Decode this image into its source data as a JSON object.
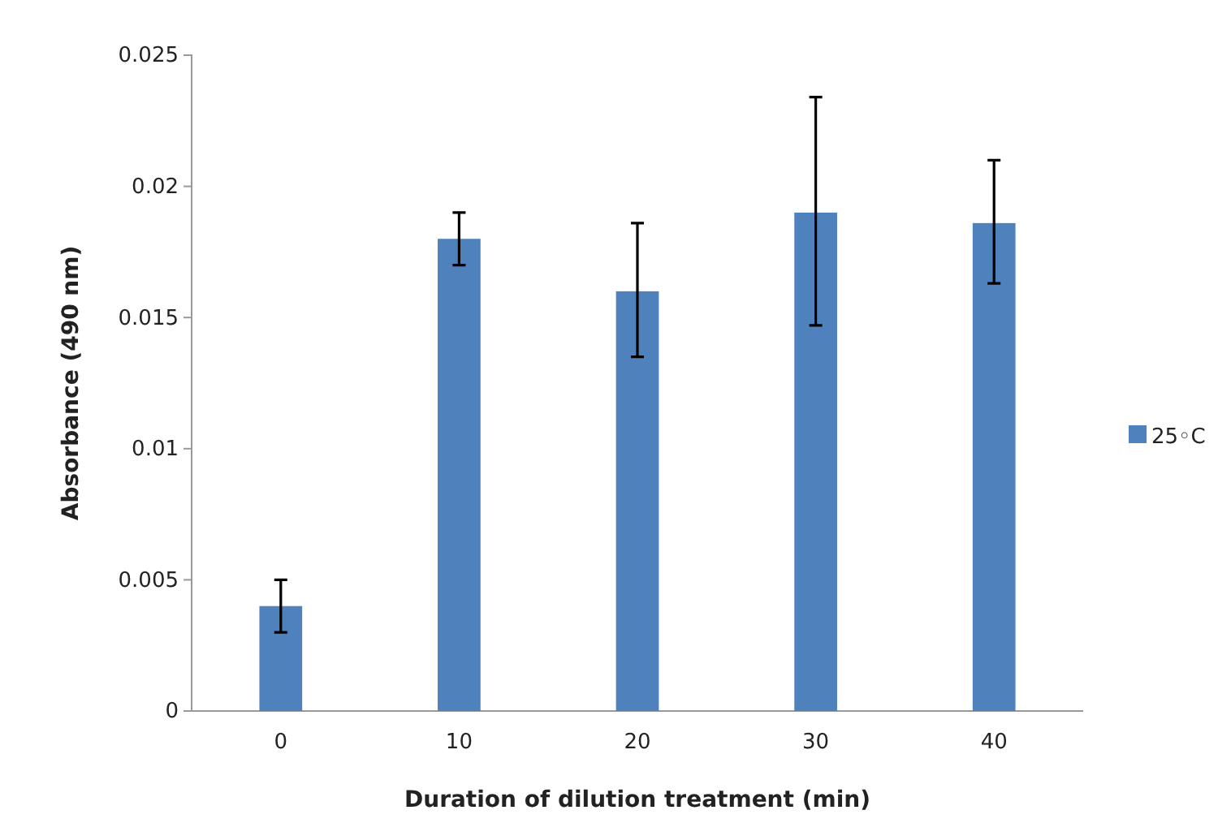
{
  "chart_data": {
    "type": "bar",
    "xlabel": "Duration of dilution treatment (min)",
    "ylabel": "Absorbance (490 nm)",
    "categories": [
      "0",
      "10",
      "20",
      "30",
      "40"
    ],
    "series": [
      {
        "name": "25◦C",
        "color": "#4f81bd",
        "values": [
          0.004,
          0.018,
          0.016,
          0.019,
          0.0186
        ],
        "errors": [
          [
            0.003,
            0.005
          ],
          [
            0.017,
            0.019
          ],
          [
            0.0135,
            0.0186
          ],
          [
            0.0147,
            0.0234
          ],
          [
            0.0163,
            0.021
          ]
        ]
      }
    ],
    "ylim": [
      0,
      0.025
    ],
    "yticks": [
      0,
      0.005,
      0.01,
      0.015,
      0.02,
      0.025
    ],
    "legend": "right"
  }
}
